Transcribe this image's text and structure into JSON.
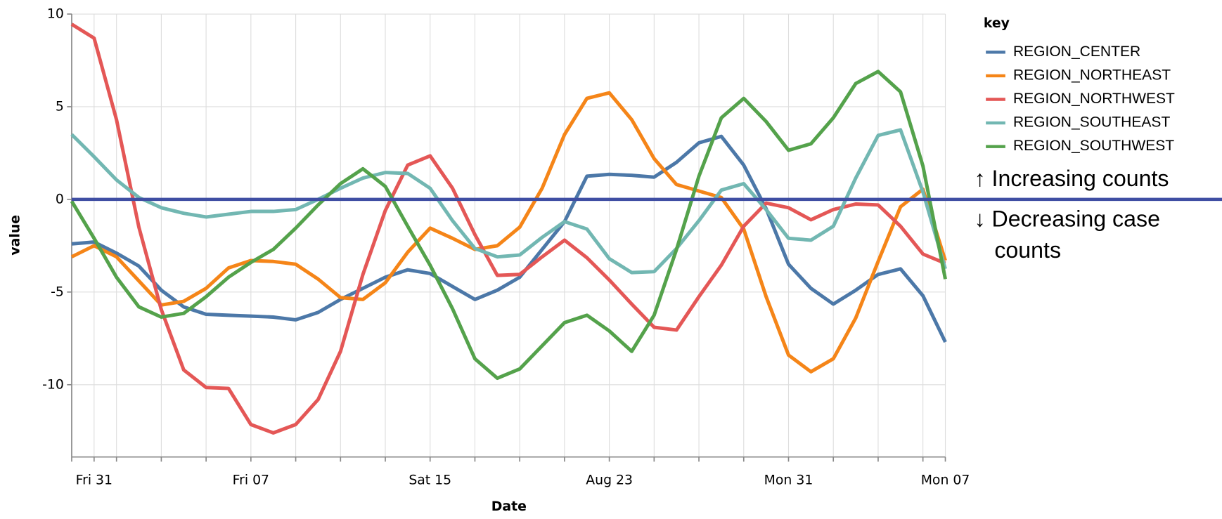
{
  "chart_data": {
    "type": "line",
    "x_label": "Date",
    "y_label": "value",
    "legend_title": "key",
    "categories": [
      null,
      "Fri 31",
      null,
      null,
      null,
      null,
      null,
      null,
      "Fri 07",
      null,
      null,
      null,
      null,
      null,
      null,
      null,
      "Sat 15",
      null,
      null,
      null,
      null,
      null,
      null,
      null,
      "Aug 23",
      null,
      null,
      null,
      null,
      null,
      null,
      null,
      "Mon 31",
      null,
      null,
      null,
      null,
      null,
      null,
      "Mon 07"
    ],
    "ylim": [
      -13.9,
      10
    ],
    "yticks": [
      -10,
      -5,
      0,
      5,
      10
    ],
    "grid": true,
    "legend": "right",
    "reference_line": {
      "value": 0,
      "color": "#3f4ea3"
    },
    "annotations": [
      "↑ Increasing counts",
      "↓ Decreasing case counts"
    ],
    "series": [
      {
        "name": "REGION_CENTER",
        "color": "#4c78a8",
        "values": [
          -2.4,
          -2.3,
          -2.9,
          -3.6,
          -4.9,
          -5.8,
          -6.2,
          -6.25,
          -6.3,
          -6.35,
          -6.5,
          -6.1,
          -5.4,
          -4.8,
          -4.2,
          -3.8,
          -4.0,
          -4.7,
          -5.4,
          -4.9,
          -4.2,
          -2.7,
          -1.2,
          1.25,
          1.35,
          1.3,
          1.2,
          2.0,
          3.05,
          3.4,
          1.85,
          -0.5,
          -3.5,
          -4.8,
          -5.65,
          -4.9,
          -4.05,
          -3.75,
          -5.2,
          -7.7
        ]
      },
      {
        "name": "REGION_NORTHEAST",
        "color": "#f58518",
        "values": [
          -3.1,
          -2.5,
          -3.1,
          -4.4,
          -5.7,
          -5.5,
          -4.8,
          -3.7,
          -3.3,
          -3.35,
          -3.5,
          -4.3,
          -5.3,
          -5.4,
          -4.5,
          -2.85,
          -1.55,
          -2.1,
          -2.7,
          -2.5,
          -1.5,
          0.6,
          3.5,
          5.45,
          5.75,
          4.3,
          2.2,
          0.8,
          0.45,
          0.1,
          -1.6,
          -5.25,
          -8.4,
          -9.3,
          -8.6,
          -6.4,
          -3.35,
          -0.4,
          0.55,
          -3.3
        ]
      },
      {
        "name": "REGION_NORTHWEST",
        "color": "#e45756",
        "values": [
          9.45,
          8.7,
          4.3,
          -1.5,
          -5.95,
          -9.2,
          -10.15,
          -10.2,
          -12.15,
          -12.6,
          -12.15,
          -10.8,
          -8.2,
          -4.05,
          -0.6,
          1.85,
          2.35,
          0.6,
          -1.9,
          -4.1,
          -4.05,
          -3.1,
          -2.2,
          -3.15,
          -4.35,
          -5.65,
          -6.9,
          -7.05,
          -5.25,
          -3.55,
          -1.45,
          -0.2,
          -0.45,
          -1.1,
          -0.55,
          -0.25,
          -0.3,
          -1.45,
          -2.95,
          -3.45
        ]
      },
      {
        "name": "REGION_SOUTHEAST",
        "color": "#72b7b2",
        "values": [
          3.5,
          2.3,
          1.05,
          0.1,
          -0.45,
          -0.75,
          -0.95,
          -0.8,
          -0.65,
          -0.65,
          -0.55,
          0,
          0.6,
          1.15,
          1.45,
          1.4,
          0.6,
          -1.15,
          -2.65,
          -3.1,
          -3.0,
          -2.05,
          -1.2,
          -1.6,
          -3.2,
          -3.95,
          -3.9,
          -2.65,
          -1.15,
          0.5,
          0.85,
          -0.55,
          -2.1,
          -2.2,
          -1.45,
          1.15,
          3.45,
          3.75,
          0.4,
          -3.75
        ]
      },
      {
        "name": "REGION_SOUTHWEST",
        "color": "#54a24b",
        "values": [
          -0.1,
          -2.1,
          -4.2,
          -5.8,
          -6.35,
          -6.15,
          -5.25,
          -4.2,
          -3.4,
          -2.7,
          -1.55,
          -0.3,
          0.85,
          1.65,
          0.7,
          -1.45,
          -3.55,
          -5.9,
          -8.6,
          -9.65,
          -9.15,
          -7.9,
          -6.65,
          -6.25,
          -7.1,
          -8.2,
          -6.25,
          -2.7,
          1.25,
          4.4,
          5.45,
          4.2,
          2.65,
          3.0,
          4.4,
          6.25,
          6.9,
          5.8,
          1.8,
          -4.3
        ]
      }
    ]
  }
}
